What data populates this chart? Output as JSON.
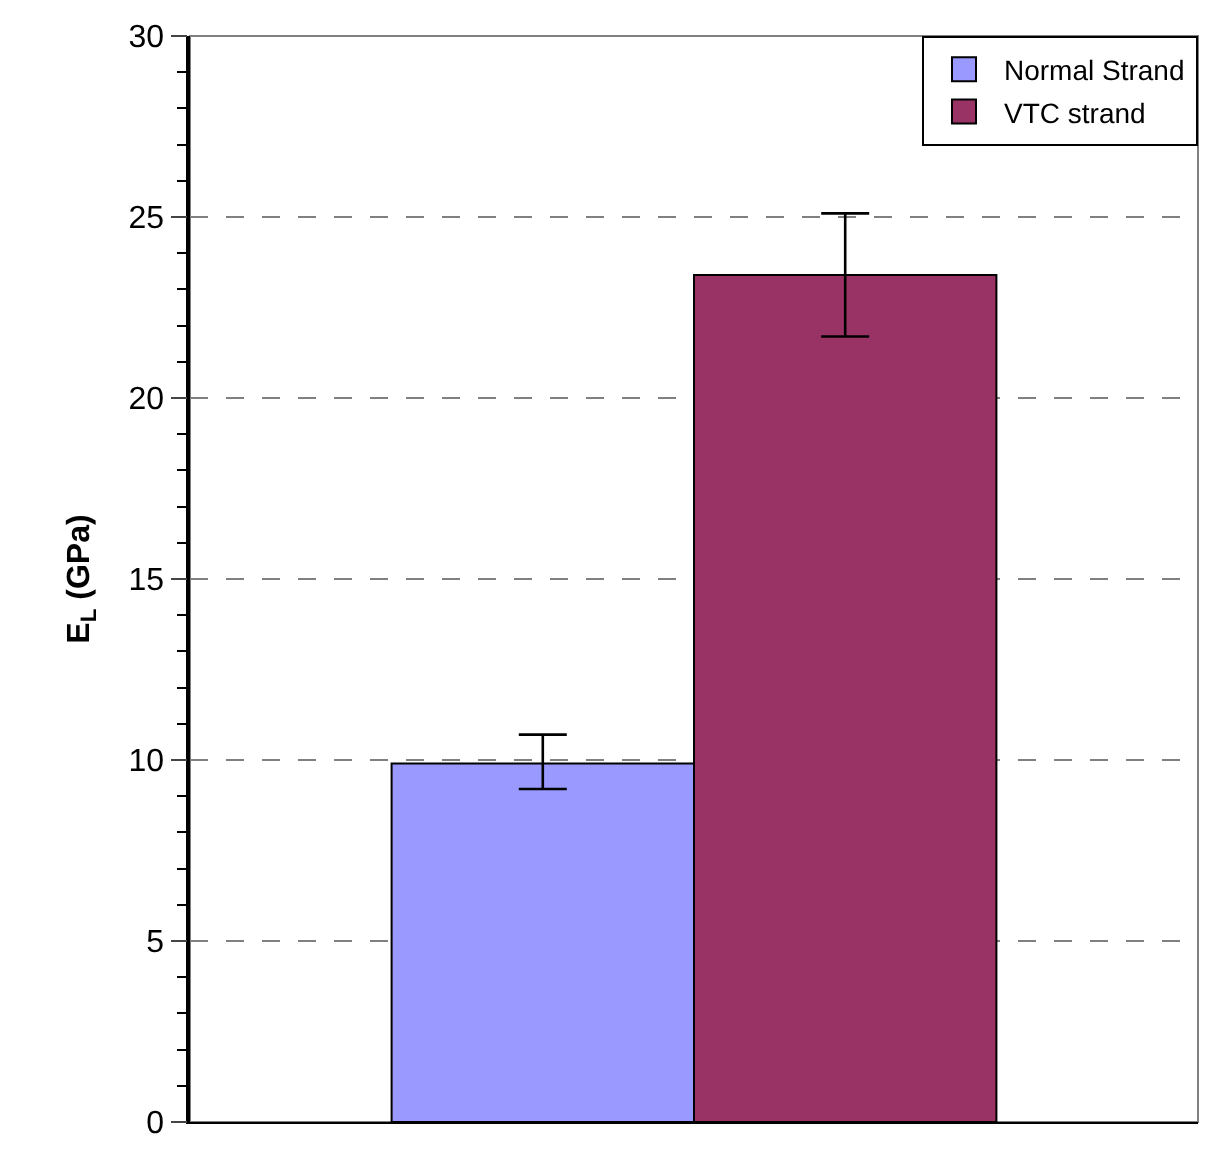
{
  "chart_data": {
    "type": "bar",
    "ylabel": "E$_{L}$ (GPa)",
    "categories": [
      null
    ],
    "series": [
      {
        "name": "Normal Strand",
        "color": "#9999ff",
        "values": [
          9.9
        ],
        "errors": [
          [
            9.2,
            10.7
          ]
        ]
      },
      {
        "name": "VTC strand",
        "color": "#993366",
        "values": [
          23.4
        ],
        "errors": [
          [
            21.7,
            25.1
          ]
        ]
      }
    ],
    "ylim": [
      0,
      30
    ],
    "yticks": [
      0,
      5,
      10,
      15,
      20,
      25,
      30
    ],
    "grid": "y",
    "legend": "top right"
  }
}
